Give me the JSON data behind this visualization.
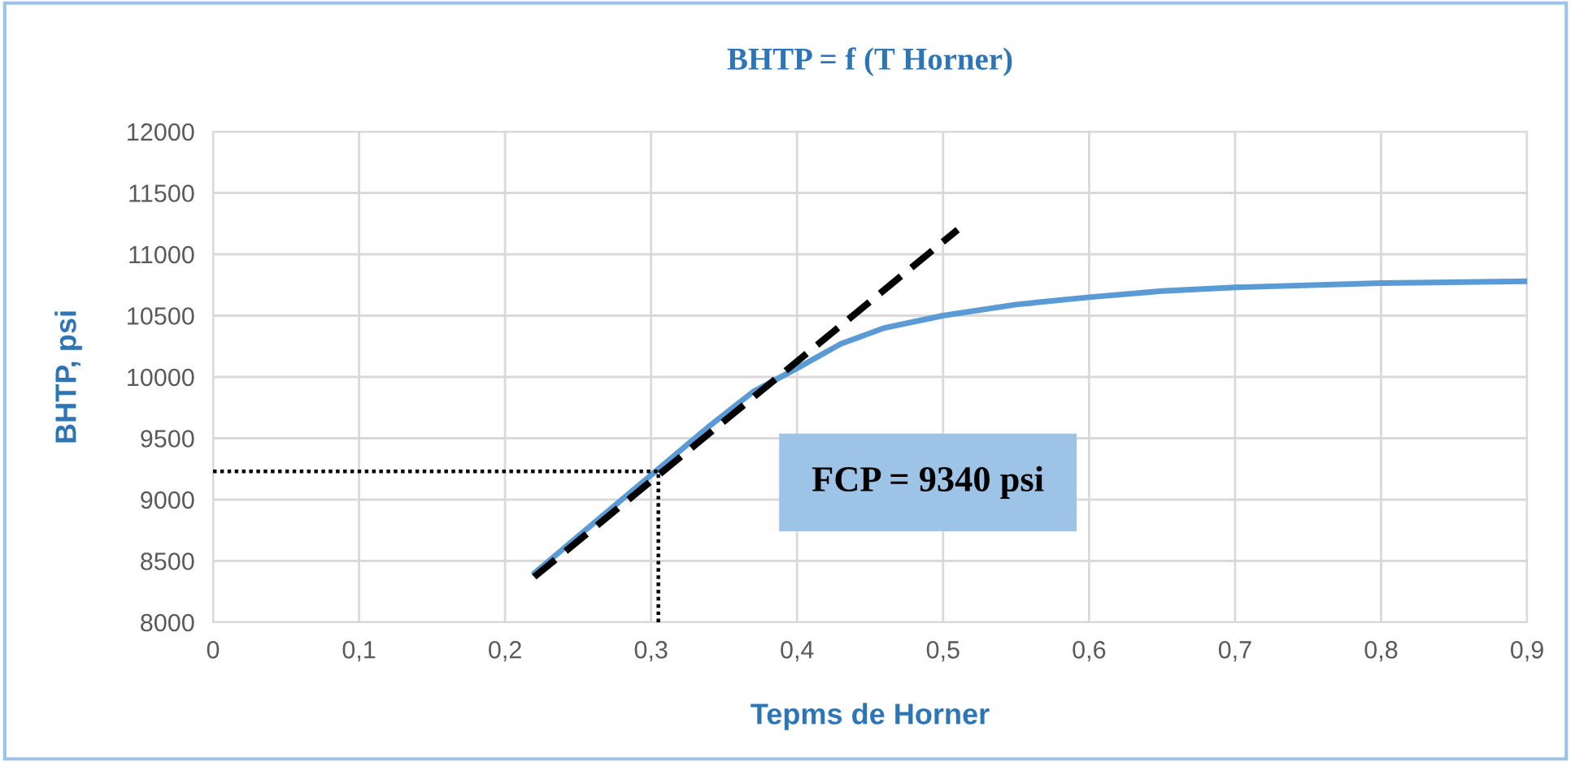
{
  "chart_data": {
    "type": "line",
    "title": "BHTP = f (T Horner)",
    "xlabel": "Tepms de Horner",
    "ylabel": "BHTP, psi",
    "xlim": [
      0,
      0.9
    ],
    "ylim": [
      8000,
      12000
    ],
    "xticks": [
      0,
      {
        "value": 0.1,
        "label": "0,1"
      },
      {
        "value": 0.2,
        "label": "0,2"
      },
      {
        "value": 0.3,
        "label": "0,3"
      },
      {
        "value": 0.4,
        "label": "0,4"
      },
      {
        "value": 0.5,
        "label": "0,5"
      },
      {
        "value": 0.6,
        "label": "0,6"
      },
      {
        "value": 0.7,
        "label": "0,7"
      },
      {
        "value": 0.8,
        "label": "0,8"
      },
      {
        "value": 0.9,
        "label": "0,9"
      }
    ],
    "yticks": [
      8000,
      8500,
      9000,
      9500,
      10000,
      10500,
      11000,
      11500,
      12000
    ],
    "grid": true,
    "marker": "none",
    "series": [
      {
        "color": "#5b9bd5",
        "line_style": "solid",
        "x": [
          0.22,
          0.26,
          0.3,
          0.34,
          0.37,
          0.4,
          0.43,
          0.46,
          0.5,
          0.55,
          0.6,
          0.65,
          0.7,
          0.8,
          0.9
        ],
        "values": [
          8400,
          8800,
          9200,
          9600,
          9880,
          10070,
          10270,
          10400,
          10500,
          10590,
          10650,
          10700,
          10730,
          10765,
          10780
        ]
      },
      {
        "color": "#000000",
        "line_style": "dashed",
        "x": [
          0.22,
          0.51
        ],
        "values": [
          8370,
          11200
        ]
      },
      {
        "color": "#000000",
        "line_style": "dotted",
        "x": [
          0,
          0.305,
          0.305
        ],
        "values": [
          9230,
          9230,
          8000
        ]
      }
    ],
    "annotations": [
      "FCP = 9340 psi"
    ]
  }
}
